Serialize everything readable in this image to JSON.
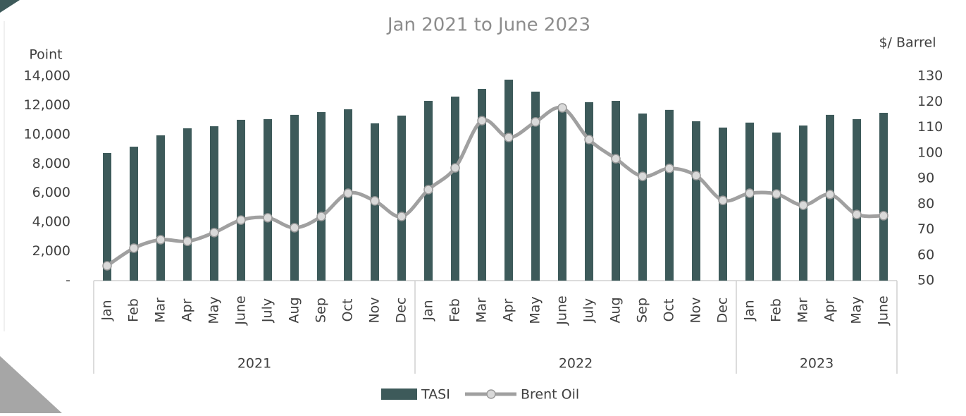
{
  "chart_data": {
    "type": "bar_line",
    "title": "Jan 2021 to June 2023",
    "y_label": "Point",
    "y2_label": "$/ Barrel",
    "categories": [
      "Jan",
      "Feb",
      "Mar",
      "Apr",
      "May",
      "June",
      "July",
      "Aug",
      "Sep",
      "Oct",
      "Nov",
      "Dec",
      "Jan",
      "Feb",
      "Mar",
      "Apr",
      "May",
      "June",
      "July",
      "Aug",
      "Sep",
      "Oct",
      "Nov",
      "Dec",
      "Jan",
      "Feb",
      "Mar",
      "Apr",
      "May",
      "June"
    ],
    "category_groups": [
      {
        "label": "2021",
        "count": 12
      },
      {
        "label": "2022",
        "count": 12
      },
      {
        "label": "2023",
        "count": 6
      }
    ],
    "series": [
      {
        "name": "TASI",
        "type": "bar",
        "color": "#3d5a5a",
        "values": [
          8740,
          9170,
          9950,
          10430,
          10570,
          11010,
          11060,
          11350,
          11540,
          11730,
          10770,
          11300,
          12310,
          12600,
          13130,
          13760,
          12940,
          11730,
          12220,
          12310,
          11440,
          11690,
          10910,
          10480,
          10820,
          10140,
          10620,
          11350,
          11060,
          11490
        ]
      },
      {
        "name": "Brent Oil",
        "type": "line",
        "axis": "y2",
        "color": "#a0a0a0",
        "marker_color": "#d9d9d9",
        "values": [
          55.8,
          62.7,
          66,
          65.4,
          68.8,
          73.7,
          74.6,
          70.7,
          75.1,
          84.2,
          81.2,
          75.1,
          85.6,
          94.1,
          112.6,
          106,
          112.1,
          117.6,
          105.2,
          97.7,
          90.8,
          93.9,
          91.1,
          81.4,
          84.2,
          83.9,
          79.5,
          83.7,
          75.9,
          75.4
        ]
      }
    ],
    "ylim": [
      0,
      14000
    ],
    "yticks": [
      {
        "value": 0,
        "label": "-"
      },
      {
        "value": 2000,
        "label": "2,000"
      },
      {
        "value": 4000,
        "label": "4,000"
      },
      {
        "value": 6000,
        "label": "6,000"
      },
      {
        "value": 8000,
        "label": "8,000"
      },
      {
        "value": 10000,
        "label": "10,000"
      },
      {
        "value": 12000,
        "label": "12,000"
      },
      {
        "value": 14000,
        "label": "14,000"
      }
    ],
    "y2lim": [
      50,
      130
    ],
    "y2ticks": [
      50,
      60,
      70,
      80,
      90,
      100,
      110,
      120,
      130
    ],
    "legend": "bottom"
  }
}
